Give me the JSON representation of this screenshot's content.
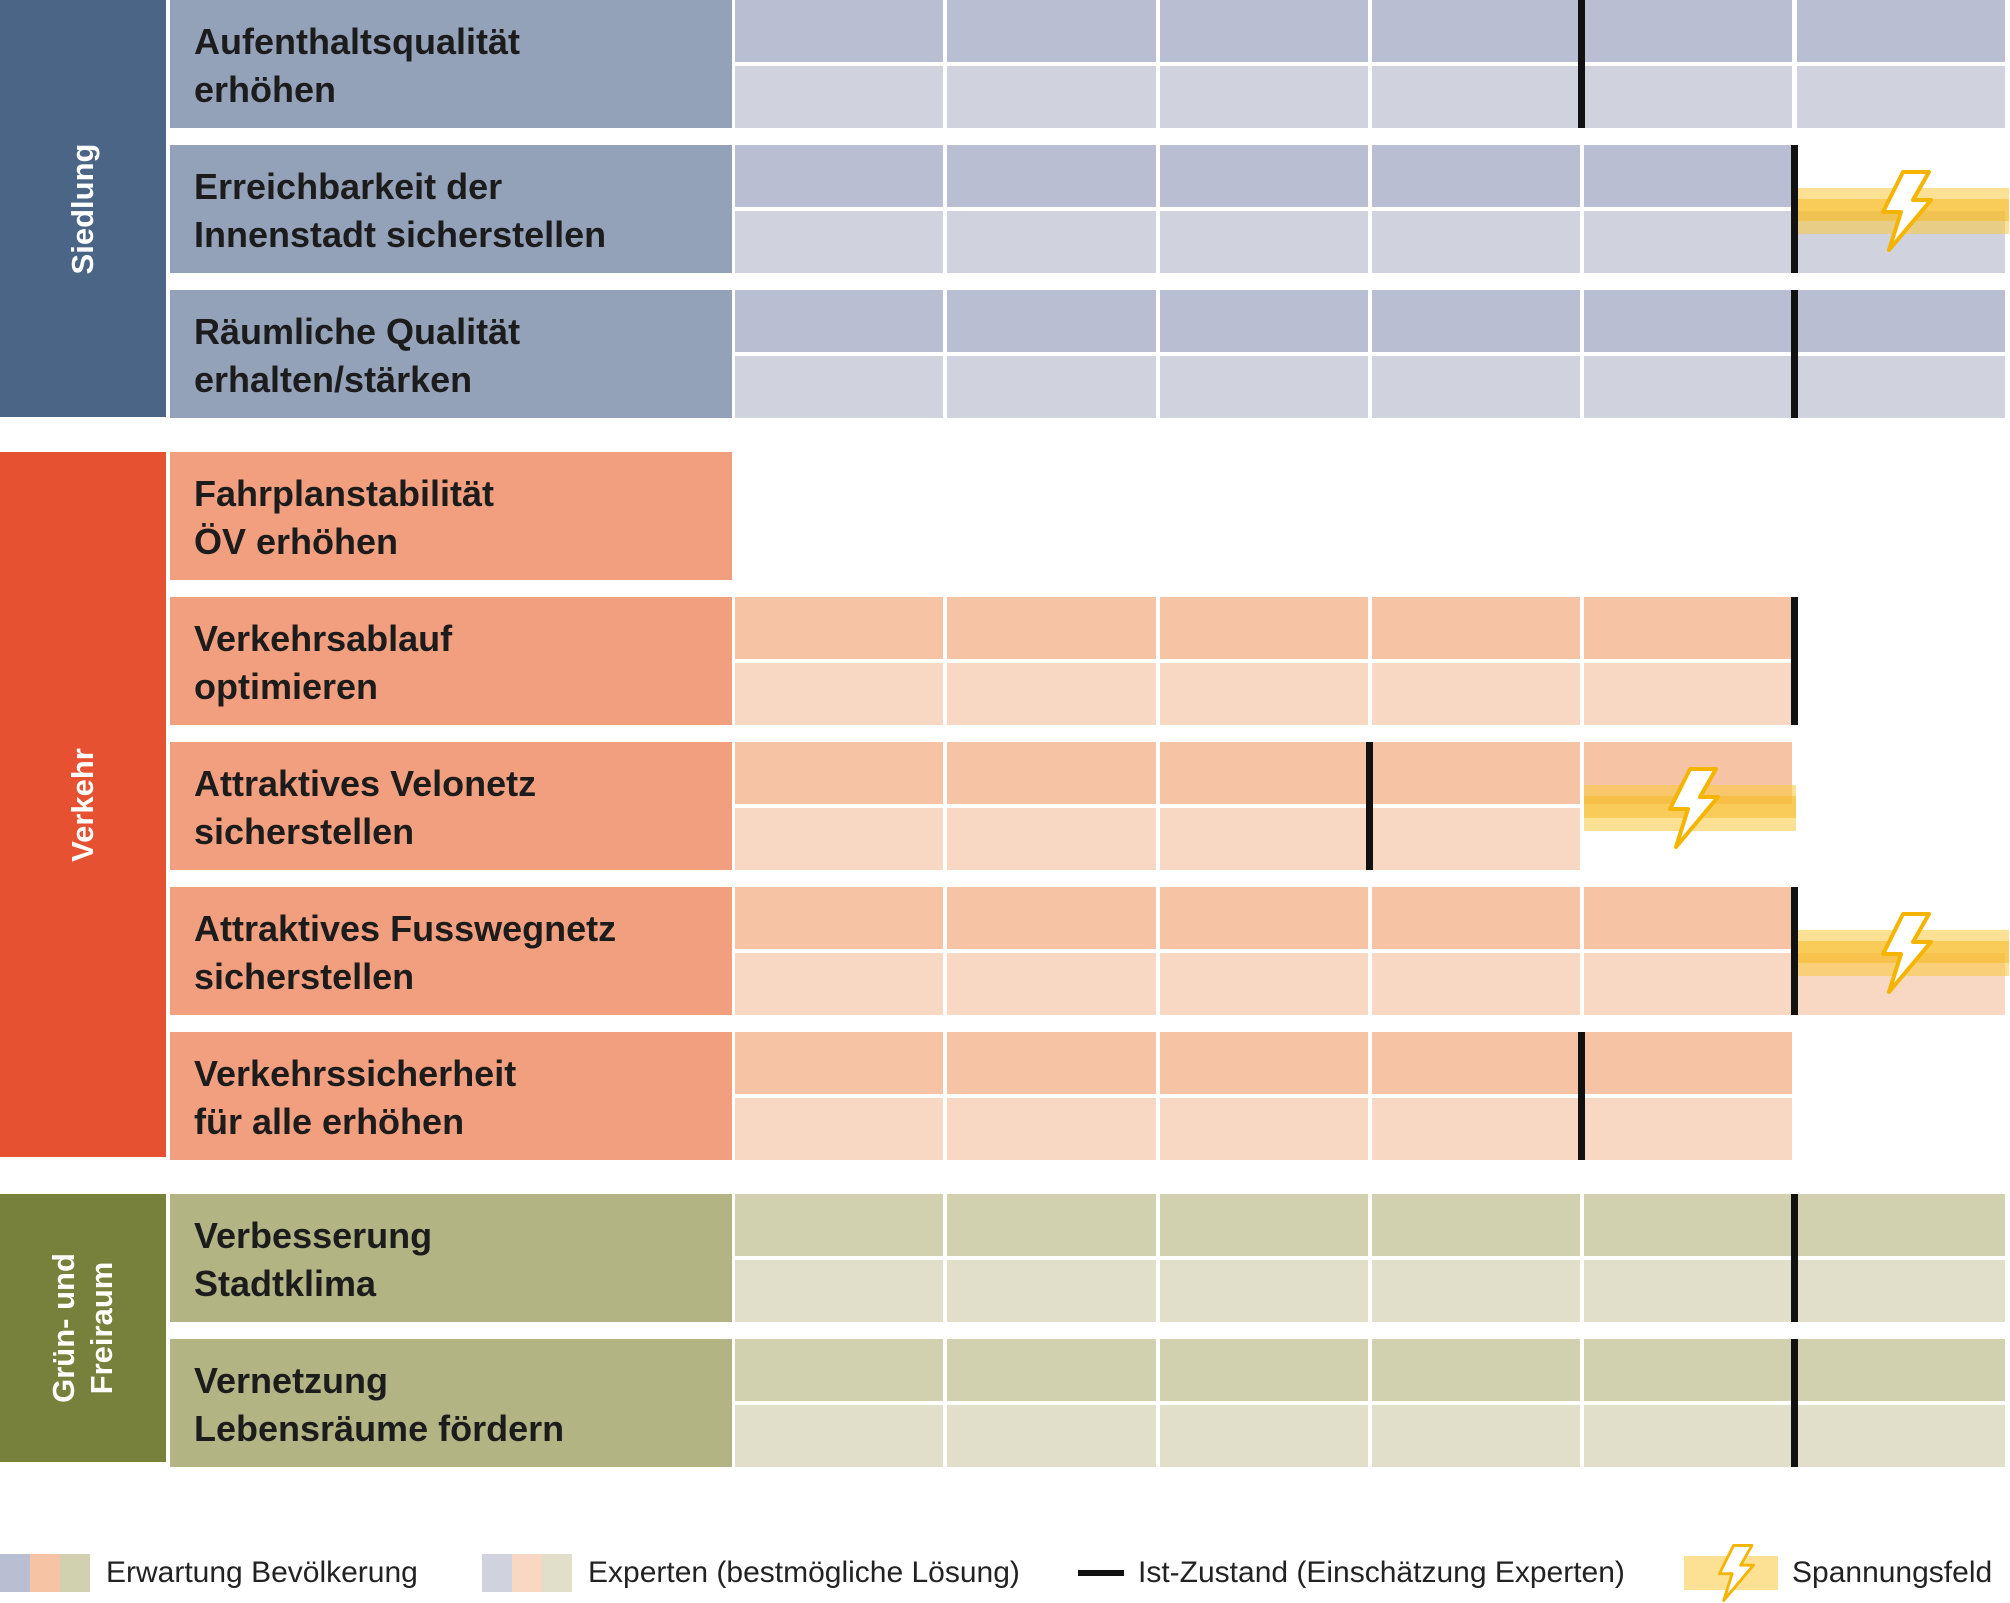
{
  "chart_data": {
    "type": "table",
    "columns": 6,
    "categories": [
      {
        "key": "siedlung",
        "label": "Siedlung",
        "color": "#4a6585"
      },
      {
        "key": "verkehr",
        "label": "Verkehr",
        "color": "#e65132"
      },
      {
        "key": "gruen",
        "label": "Grün- und\nFreiraum",
        "color": "#77813b"
      }
    ],
    "palettes": {
      "siedlung": {
        "label_bg": "#94a2b9",
        "bevoelkerung": "#b9bed2",
        "experten": "#d0d2de"
      },
      "verkehr": {
        "label_bg": "#f29f7f",
        "bevoelkerung": "#f7c3a5",
        "experten": "#f9d8c3"
      },
      "gruen": {
        "label_bg": "#b2b484",
        "bevoelkerung": "#d2d1af",
        "experten": "#e1dfc9"
      }
    },
    "rows": [
      {
        "category": "siedlung",
        "label": "Aufenthaltsqualität\nerhöhen",
        "bevoelkerung": 6,
        "experten": 6,
        "ist": 4,
        "spannungsfeld": null
      },
      {
        "category": "siedlung",
        "label": "Erreichbarkeit der\nInnenstadt sicherstellen",
        "bevoelkerung": 5,
        "experten": 6,
        "ist": 5,
        "spannungsfeld": [
          5,
          6
        ]
      },
      {
        "category": "siedlung",
        "label": "Räumliche Qualität\nerhalten/stärken",
        "bevoelkerung": 6,
        "experten": 6,
        "ist": 5,
        "spannungsfeld": null
      },
      {
        "category": "verkehr",
        "label": "Fahrplanstabilität\nÖV erhöhen",
        "bevoelkerung": 0,
        "experten": 0,
        "ist": null,
        "spannungsfeld": null
      },
      {
        "category": "verkehr",
        "label": "Verkehrsablauf\noptimieren",
        "bevoelkerung": 5,
        "experten": 5,
        "ist": 5,
        "spannungsfeld": null
      },
      {
        "category": "verkehr",
        "label": "Attraktives Velonetz\nsicherstellen",
        "bevoelkerung": 5,
        "experten": 4,
        "ist": 3,
        "spannungsfeld": [
          4,
          5
        ]
      },
      {
        "category": "verkehr",
        "label": "Attraktives Fusswegnetz\nsicherstellen",
        "bevoelkerung": 5,
        "experten": 6,
        "ist": 5,
        "spannungsfeld": [
          5,
          6
        ]
      },
      {
        "category": "verkehr",
        "label": "Verkehrssicherheit\nfür alle erhöhen",
        "bevoelkerung": 5,
        "experten": 5,
        "ist": 4,
        "spannungsfeld": null
      },
      {
        "category": "gruen",
        "label": "Verbesserung\nStadtklima",
        "bevoelkerung": 6,
        "experten": 6,
        "ist": 5,
        "spannungsfeld": null
      },
      {
        "category": "gruen",
        "label": "Vernetzung\nLebensräume fördern",
        "bevoelkerung": 6,
        "experten": 6,
        "ist": 5,
        "spannungsfeld": null
      }
    ],
    "legend": [
      {
        "key": "bevoelkerung",
        "label": "Erwartung Bevölkerung"
      },
      {
        "key": "experten",
        "label": "Experten (bestmögliche Lösung)"
      },
      {
        "key": "ist",
        "label": "Ist-Zustand (Einschätzung Experten)"
      },
      {
        "key": "spannungsfeld",
        "label": "Spannungsfeld"
      }
    ],
    "ist_color": "#111111",
    "tension_color": "#f7c948"
  }
}
